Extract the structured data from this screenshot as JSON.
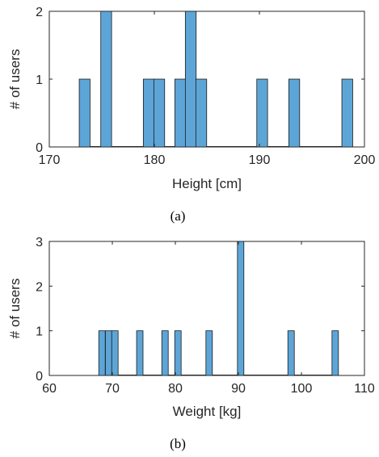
{
  "chart_data": [
    {
      "type": "bar",
      "subtype": "histogram",
      "caption": "(a)",
      "xlabel": "Height [cm]",
      "ylabel": "# of users",
      "xlim": [
        170,
        200
      ],
      "ylim": [
        0,
        2
      ],
      "xticks": [
        170,
        180,
        190,
        200
      ],
      "yticks": [
        0,
        1,
        2
      ],
      "bin_width": 1.03,
      "bars": [
        {
          "x_start": 172.85,
          "count": 1
        },
        {
          "x_start": 174.9,
          "count": 2
        },
        {
          "x_start": 178.95,
          "count": 1
        },
        {
          "x_start": 179.95,
          "count": 1
        },
        {
          "x_start": 181.95,
          "count": 1
        },
        {
          "x_start": 182.95,
          "count": 2
        },
        {
          "x_start": 183.95,
          "count": 1
        },
        {
          "x_start": 189.75,
          "count": 1
        },
        {
          "x_start": 192.8,
          "count": 1
        },
        {
          "x_start": 197.85,
          "count": 1
        }
      ],
      "bar_color": "#5DA5D7",
      "grid": false,
      "box": true
    },
    {
      "type": "bar",
      "subtype": "histogram",
      "caption": "(b)",
      "xlabel": "Weight [kg]",
      "ylabel": "# of users",
      "xlim": [
        60,
        110
      ],
      "ylim": [
        0,
        3
      ],
      "xticks": [
        60,
        70,
        80,
        90,
        100,
        110
      ],
      "yticks": [
        0,
        1,
        2,
        3
      ],
      "bin_width": 1.02,
      "bars": [
        {
          "x_start": 67.85,
          "count": 1
        },
        {
          "x_start": 68.9,
          "count": 1
        },
        {
          "x_start": 69.9,
          "count": 1
        },
        {
          "x_start": 73.85,
          "count": 1
        },
        {
          "x_start": 77.85,
          "count": 1
        },
        {
          "x_start": 79.9,
          "count": 1
        },
        {
          "x_start": 84.85,
          "count": 1
        },
        {
          "x_start": 89.85,
          "count": 3
        },
        {
          "x_start": 97.85,
          "count": 1
        },
        {
          "x_start": 104.85,
          "count": 1
        }
      ],
      "bar_color": "#5DA5D7",
      "grid": false,
      "box": true
    }
  ]
}
